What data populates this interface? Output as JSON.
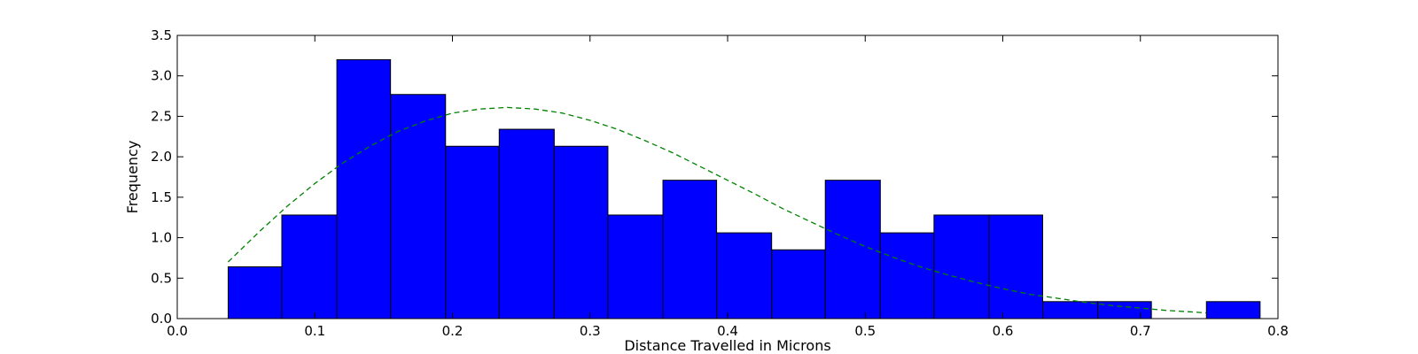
{
  "chart_data": {
    "type": "bar",
    "title": "",
    "xlabel": "Distance Travelled in Microns",
    "ylabel": "Frequency",
    "xlim": [
      0.0,
      0.8
    ],
    "ylim": [
      0.0,
      3.5
    ],
    "xticks": [
      "0.0",
      "0.1",
      "0.2",
      "0.3",
      "0.4",
      "0.5",
      "0.6",
      "0.7",
      "0.8"
    ],
    "yticks": [
      "0.0",
      "0.5",
      "1.0",
      "1.5",
      "2.0",
      "2.5",
      "3.0",
      "3.5"
    ],
    "grid": false,
    "bar_color": "#0000ff",
    "bar_edge_color": "#000000",
    "bins": [
      {
        "x0": 0.037,
        "x1": 0.076,
        "value": 0.64
      },
      {
        "x0": 0.076,
        "x1": 0.116,
        "value": 1.28
      },
      {
        "x0": 0.116,
        "x1": 0.155,
        "value": 3.2
      },
      {
        "x0": 0.155,
        "x1": 0.195,
        "value": 2.77
      },
      {
        "x0": 0.195,
        "x1": 0.234,
        "value": 2.13
      },
      {
        "x0": 0.234,
        "x1": 0.274,
        "value": 2.34
      },
      {
        "x0": 0.274,
        "x1": 0.313,
        "value": 2.13
      },
      {
        "x0": 0.313,
        "x1": 0.353,
        "value": 1.28
      },
      {
        "x0": 0.353,
        "x1": 0.392,
        "value": 1.71
      },
      {
        "x0": 0.392,
        "x1": 0.432,
        "value": 1.06
      },
      {
        "x0": 0.432,
        "x1": 0.471,
        "value": 0.85
      },
      {
        "x0": 0.471,
        "x1": 0.511,
        "value": 1.71
      },
      {
        "x0": 0.511,
        "x1": 0.55,
        "value": 1.06
      },
      {
        "x0": 0.55,
        "x1": 0.59,
        "value": 1.28
      },
      {
        "x0": 0.59,
        "x1": 0.629,
        "value": 1.28
      },
      {
        "x0": 0.629,
        "x1": 0.669,
        "value": 0.21
      },
      {
        "x0": 0.669,
        "x1": 0.708,
        "value": 0.21
      },
      {
        "x0": 0.708,
        "x1": 0.748,
        "value": 0.0
      },
      {
        "x0": 0.748,
        "x1": 0.787,
        "value": 0.21
      }
    ],
    "fit_curve": {
      "color": "#008000",
      "style": "dashed",
      "x": [
        0.037,
        0.06,
        0.08,
        0.1,
        0.12,
        0.14,
        0.16,
        0.18,
        0.2,
        0.22,
        0.24,
        0.26,
        0.28,
        0.3,
        0.32,
        0.34,
        0.36,
        0.38,
        0.4,
        0.42,
        0.44,
        0.46,
        0.48,
        0.5,
        0.52,
        0.54,
        0.56,
        0.58,
        0.6,
        0.62,
        0.64,
        0.66,
        0.68,
        0.7,
        0.72,
        0.74,
        0.748
      ],
      "y": [
        0.7,
        1.08,
        1.39,
        1.67,
        1.92,
        2.13,
        2.31,
        2.44,
        2.54,
        2.59,
        2.61,
        2.59,
        2.54,
        2.45,
        2.34,
        2.2,
        2.05,
        1.88,
        1.71,
        1.54,
        1.36,
        1.2,
        1.04,
        0.89,
        0.76,
        0.64,
        0.54,
        0.45,
        0.37,
        0.3,
        0.25,
        0.2,
        0.16,
        0.13,
        0.1,
        0.08,
        0.07
      ]
    }
  }
}
